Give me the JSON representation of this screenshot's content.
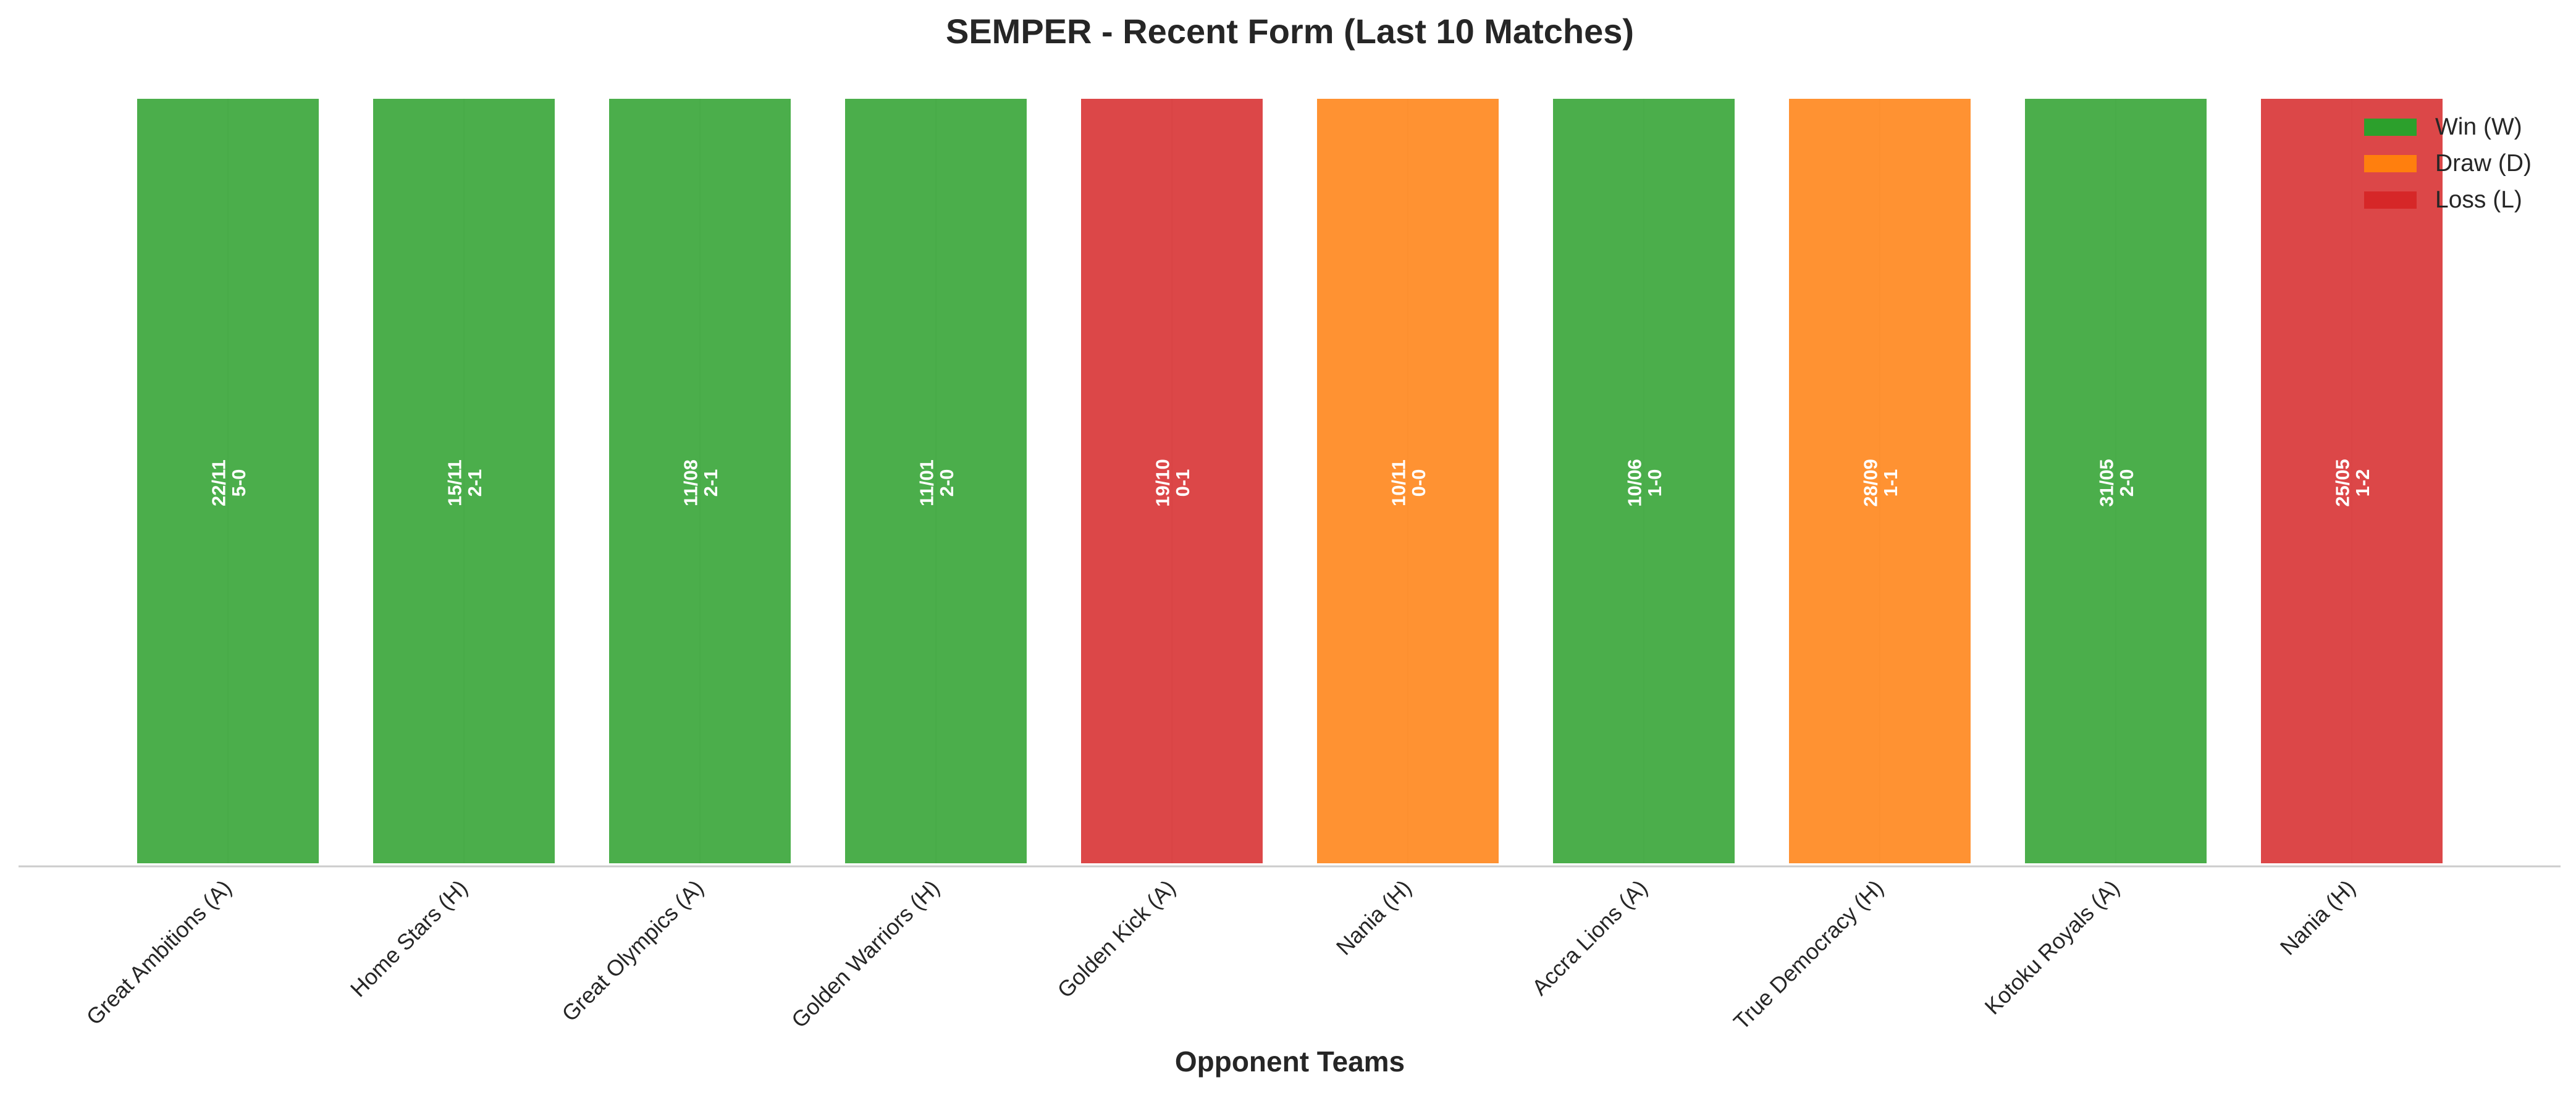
{
  "chart_data": {
    "type": "bar",
    "title": "SEMPER - Recent Form (Last 10 Matches)",
    "xlabel": "Opponent Teams",
    "ylabel": "",
    "grid": true,
    "legend_position": "top-right",
    "categories": [
      "Great Ambitions (A)",
      "Home Stars (H)",
      "Great Olympics (A)",
      "Golden Warriors (H)",
      "Golden Kick (A)",
      "Nania (H)",
      "Accra Lions (A)",
      "True Democracy (H)",
      "Kotoku Royals (A)",
      "Nania (H)"
    ],
    "matches": [
      {
        "opponent": "Great Ambitions (A)",
        "date": "22/11",
        "score": "5-0",
        "result": "W",
        "value": 1
      },
      {
        "opponent": "Home Stars (H)",
        "date": "15/11",
        "score": "2-1",
        "result": "W",
        "value": 1
      },
      {
        "opponent": "Great Olympics (A)",
        "date": "11/08",
        "score": "2-1",
        "result": "W",
        "value": 1
      },
      {
        "opponent": "Golden Warriors (H)",
        "date": "11/01",
        "score": "2-0",
        "result": "W",
        "value": 1
      },
      {
        "opponent": "Golden Kick (A)",
        "date": "19/10",
        "score": "0-1",
        "result": "L",
        "value": 1
      },
      {
        "opponent": "Nania (H)",
        "date": "10/11",
        "score": "0-0",
        "result": "D",
        "value": 1
      },
      {
        "opponent": "Accra Lions (A)",
        "date": "10/06",
        "score": "1-0",
        "result": "W",
        "value": 1
      },
      {
        "opponent": "True Democracy (H)",
        "date": "28/09",
        "score": "1-1",
        "result": "D",
        "value": 1
      },
      {
        "opponent": "Kotoku Royals (A)",
        "date": "31/05",
        "score": "2-0",
        "result": "W",
        "value": 1
      },
      {
        "opponent": "Nania (H)",
        "date": "25/05",
        "score": "1-2",
        "result": "L",
        "value": 1
      }
    ],
    "legend": [
      {
        "key": "W",
        "label": "Win (W)",
        "color": "#2ca02c"
      },
      {
        "key": "D",
        "label": "Draw (D)",
        "color": "#ff7f0e"
      },
      {
        "key": "L",
        "label": "Loss (L)",
        "color": "#d62728"
      }
    ],
    "colors": {
      "W": "#2ca02c",
      "D": "#ff7f0e",
      "L": "#d62728"
    }
  }
}
